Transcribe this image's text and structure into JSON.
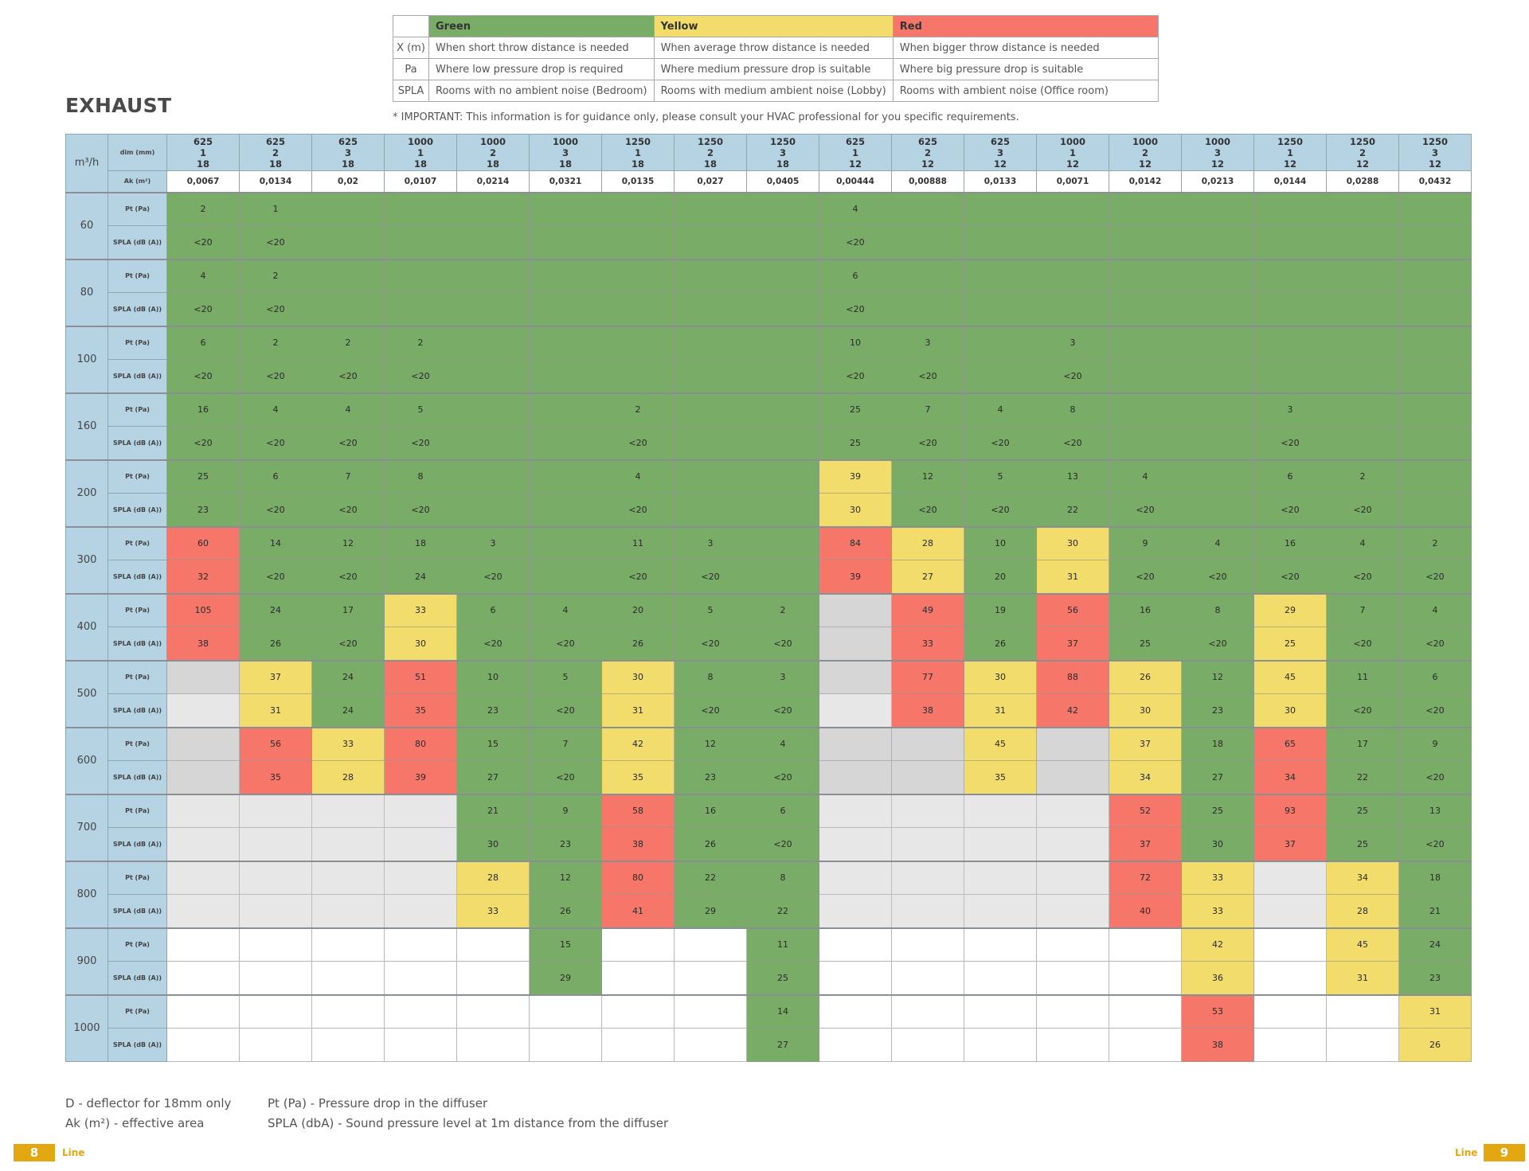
{
  "legend": {
    "headers": [
      "Green",
      "Yellow",
      "Red"
    ],
    "colors": {
      "green": "#79ac66",
      "yellow": "#f2dc6c",
      "red": "#f6776a"
    },
    "rows": [
      {
        "label": "X (m)",
        "green": "When short throw distance is needed",
        "yellow": "When average throw distance is needed",
        "red": "When bigger throw distance is needed"
      },
      {
        "label": "Pa",
        "green": "Where low pressure drop is required",
        "yellow": "Where medium pressure drop is suitable",
        "red": "Where big pressure drop is suitable"
      },
      {
        "label": "SPLA",
        "green": "Rooms with no ambient noise (Bedroom)",
        "yellow": "Rooms with medium ambient noise (Lobby)",
        "red": "Rooms with ambient noise (Office room)"
      }
    ]
  },
  "title": "EXHAUST",
  "important": "* IMPORTANT: This information is for guidance only, please consult your HVAC professional for you specific requirements.",
  "table": {
    "m3h_label": "m³/h",
    "dim_label": "dim (mm)",
    "ak_label": "Ak (m²)",
    "pt_label": "Pt (Pa)",
    "spla_label": "SPLA (dB (A))",
    "columns": [
      {
        "l1": "625",
        "l2": "1",
        "l3": "18",
        "ak": "0,0067"
      },
      {
        "l1": "625",
        "l2": "2",
        "l3": "18",
        "ak": "0,0134"
      },
      {
        "l1": "625",
        "l2": "3",
        "l3": "18",
        "ak": "0,02"
      },
      {
        "l1": "1000",
        "l2": "1",
        "l3": "18",
        "ak": "0,0107"
      },
      {
        "l1": "1000",
        "l2": "2",
        "l3": "18",
        "ak": "0,0214"
      },
      {
        "l1": "1000",
        "l2": "3",
        "l3": "18",
        "ak": "0,0321"
      },
      {
        "l1": "1250",
        "l2": "1",
        "l3": "18",
        "ak": "0,0135"
      },
      {
        "l1": "1250",
        "l2": "2",
        "l3": "18",
        "ak": "0,027"
      },
      {
        "l1": "1250",
        "l2": "3",
        "l3": "18",
        "ak": "0,0405"
      },
      {
        "l1": "625",
        "l2": "1",
        "l3": "12",
        "ak": "0,00444"
      },
      {
        "l1": "625",
        "l2": "2",
        "l3": "12",
        "ak": "0,00888"
      },
      {
        "l1": "625",
        "l2": "3",
        "l3": "12",
        "ak": "0,0133"
      },
      {
        "l1": "1000",
        "l2": "1",
        "l3": "12",
        "ak": "0,0071"
      },
      {
        "l1": "1000",
        "l2": "2",
        "l3": "12",
        "ak": "0,0142"
      },
      {
        "l1": "1000",
        "l2": "3",
        "l3": "12",
        "ak": "0,0213"
      },
      {
        "l1": "1250",
        "l2": "1",
        "l3": "12",
        "ak": "0,0144"
      },
      {
        "l1": "1250",
        "l2": "2",
        "l3": "12",
        "ak": "0,0288"
      },
      {
        "l1": "1250",
        "l2": "3",
        "l3": "12",
        "ak": "0,0432"
      }
    ],
    "blocks": [
      {
        "flow": "60",
        "pt": [
          "2",
          "1",
          "",
          "",
          "",
          "",
          "",
          "",
          "",
          "4",
          "",
          "",
          "",
          "",
          "",
          "",
          "",
          ""
        ],
        "spla": [
          "<20",
          "<20",
          "",
          "",
          "",
          "",
          "",
          "",
          "",
          "<20",
          "",
          "",
          "",
          "",
          "",
          "",
          "",
          ""
        ],
        "pt_c": "GGGGGGGGGGGGGGGGGG",
        "spla_c": "GGGGGGGGGGGGGGGGGG"
      },
      {
        "flow": "80",
        "pt": [
          "4",
          "2",
          "",
          "",
          "",
          "",
          "",
          "",
          "",
          "6",
          "",
          "",
          "",
          "",
          "",
          "",
          "",
          ""
        ],
        "spla": [
          "<20",
          "<20",
          "",
          "",
          "",
          "",
          "",
          "",
          "",
          "<20",
          "",
          "",
          "",
          "",
          "",
          "",
          "",
          ""
        ],
        "pt_c": "GGGGGGGGGGGGGGGGGG",
        "spla_c": "GGGGGGGGGGGGGGGGGG"
      },
      {
        "flow": "100",
        "pt": [
          "6",
          "2",
          "2",
          "2",
          "",
          "",
          "",
          "",
          "",
          "10",
          "3",
          "",
          "3",
          "",
          "",
          "",
          "",
          ""
        ],
        "spla": [
          "<20",
          "<20",
          "<20",
          "<20",
          "",
          "",
          "",
          "",
          "",
          "<20",
          "<20",
          "",
          "<20",
          "",
          "",
          "",
          "",
          ""
        ],
        "pt_c": "GGGGGGGGGGGGGGGGGG",
        "spla_c": "GGGGGGGGGGGGGGGGGG"
      },
      {
        "flow": "160",
        "pt": [
          "16",
          "4",
          "4",
          "5",
          "",
          "",
          "2",
          "",
          "",
          "25",
          "7",
          "4",
          "8",
          "",
          "",
          "3",
          "",
          ""
        ],
        "spla": [
          "<20",
          "<20",
          "<20",
          "<20",
          "",
          "",
          "<20",
          "",
          "",
          "25",
          "<20",
          "<20",
          "<20",
          "",
          "",
          "<20",
          "",
          ""
        ],
        "pt_c": "GGGGGGGGGGGGGGGGGG",
        "spla_c": "GGGGGGGGGGGGGGGGGG"
      },
      {
        "flow": "200",
        "pt": [
          "25",
          "6",
          "7",
          "8",
          "",
          "",
          "4",
          "",
          "",
          "39",
          "12",
          "5",
          "13",
          "4",
          "",
          "6",
          "2",
          ""
        ],
        "spla": [
          "23",
          "<20",
          "<20",
          "<20",
          "",
          "",
          "<20",
          "",
          "",
          "30",
          "<20",
          "<20",
          "22",
          "<20",
          "",
          "<20",
          "<20",
          ""
        ],
        "pt_c": "GGGGGGGGGYGGGGGGGG",
        "spla_c": "GGGGGGGGGYGGGGGGGG"
      },
      {
        "flow": "300",
        "pt": [
          "60",
          "14",
          "12",
          "18",
          "3",
          "",
          "11",
          "3",
          "",
          "84",
          "28",
          "10",
          "30",
          "9",
          "4",
          "16",
          "4",
          "2"
        ],
        "spla": [
          "32",
          "<20",
          "<20",
          "24",
          "<20",
          "",
          "<20",
          "<20",
          "",
          "39",
          "27",
          "20",
          "31",
          "<20",
          "<20",
          "<20",
          "<20",
          "<20"
        ],
        "pt_c": "RGGGGGGGGRYGYGGGGG",
        "spla_c": "RGGGGGGGGRYGYGGGGG"
      },
      {
        "flow": "400",
        "pt": [
          "105",
          "24",
          "17",
          "33",
          "6",
          "4",
          "20",
          "5",
          "2",
          "",
          "49",
          "19",
          "56",
          "16",
          "8",
          "29",
          "7",
          "4"
        ],
        "spla": [
          "38",
          "26",
          "<20",
          "30",
          "<20",
          "<20",
          "26",
          "<20",
          "<20",
          "",
          "33",
          "26",
          "37",
          "25",
          "<20",
          "25",
          "<20",
          "<20"
        ],
        "pt_c": "RGGYGGGGGNRGRGGYGG",
        "spla_c": "RGGYGGGGGNRGRGGYGG"
      },
      {
        "flow": "500",
        "pt": [
          "",
          "37",
          "24",
          "51",
          "10",
          "5",
          "30",
          "8",
          "3",
          "",
          "77",
          "30",
          "88",
          "26",
          "12",
          "45",
          "11",
          "6"
        ],
        "spla": [
          "",
          "31",
          "24",
          "35",
          "23",
          "<20",
          "31",
          "<20",
          "<20",
          "",
          "38",
          "31",
          "42",
          "30",
          "23",
          "30",
          "<20",
          "<20"
        ],
        "pt_c": "NYGRGGYGGNRYRYGYGG",
        "spla_c": "LYGRGGYGGLRYRYGYGG"
      },
      {
        "flow": "600",
        "pt": [
          "",
          "56",
          "33",
          "80",
          "15",
          "7",
          "42",
          "12",
          "4",
          "",
          "",
          "45",
          "",
          "37",
          "18",
          "65",
          "17",
          "9"
        ],
        "spla": [
          "",
          "35",
          "28",
          "39",
          "27",
          "<20",
          "35",
          "23",
          "<20",
          "",
          "",
          "35",
          "",
          "34",
          "27",
          "34",
          "22",
          "<20"
        ],
        "pt_c": "NRYRGGYGGNNYNYGRGG",
        "spla_c": "NRYRGGYGGNNYNYGRGG"
      },
      {
        "flow": "700",
        "pt": [
          "",
          "",
          "",
          "",
          "21",
          "9",
          "58",
          "16",
          "6",
          "",
          "",
          "",
          "",
          "52",
          "25",
          "93",
          "25",
          "13"
        ],
        "spla": [
          "",
          "",
          "",
          "",
          "30",
          "23",
          "38",
          "26",
          "<20",
          "",
          "",
          "",
          "",
          "37",
          "30",
          "37",
          "25",
          "<20"
        ],
        "pt_c": "LLLLGGRGGLLLLRGRGG",
        "spla_c": "LLLLGGRGGLLLLRGRGG"
      },
      {
        "flow": "800",
        "pt": [
          "",
          "",
          "",
          "",
          "28",
          "12",
          "80",
          "22",
          "8",
          "",
          "",
          "",
          "",
          "72",
          "33",
          "",
          "34",
          "18"
        ],
        "spla": [
          "",
          "",
          "",
          "",
          "33",
          "26",
          "41",
          "29",
          "22",
          "",
          "",
          "",
          "",
          "40",
          "33",
          "",
          "28",
          "21"
        ],
        "pt_c": "LLLLYGRGGLLLLRYLYG",
        "spla_c": "LLLLYGRGGLLLLRYLYG"
      },
      {
        "flow": "900",
        "pt": [
          "",
          "",
          "",
          "",
          "",
          "15",
          "",
          "",
          "11",
          "",
          "",
          "",
          "",
          "",
          "42",
          "",
          "45",
          "24"
        ],
        "spla": [
          "",
          "",
          "",
          "",
          "",
          "29",
          "",
          "",
          "25",
          "",
          "",
          "",
          "",
          "",
          "36",
          "",
          "31",
          "23"
        ],
        "pt_c": "WWWWWGWWGWWWWWYWYG",
        "spla_c": "WWWWWGWWGWWWWWYWYG"
      },
      {
        "flow": "1000",
        "pt": [
          "",
          "",
          "",
          "",
          "",
          "",
          "",
          "",
          "14",
          "",
          "",
          "",
          "",
          "",
          "53",
          "",
          "",
          "31"
        ],
        "spla": [
          "",
          "",
          "",
          "",
          "",
          "",
          "",
          "",
          "27",
          "",
          "",
          "",
          "",
          "",
          "38",
          "",
          "",
          "26"
        ],
        "pt_c": "WWWWWWWWGWWWWWRWWY",
        "spla_c": "WWWWWWWWGWWWWWRWWY"
      }
    ]
  },
  "footnotes": {
    "left": [
      "D - deflector for 18mm only",
      "Ak (m²) - effective area"
    ],
    "right": [
      "Pt (Pa) - Pressure drop in the diffuser",
      "SPLA (dbA) - Sound pressure level at 1m distance from the diffuser"
    ]
  },
  "footer": {
    "page_left": "8",
    "page_right": "9",
    "line_left": "Line",
    "line_right": "Line",
    "accent": "#e3a711"
  }
}
